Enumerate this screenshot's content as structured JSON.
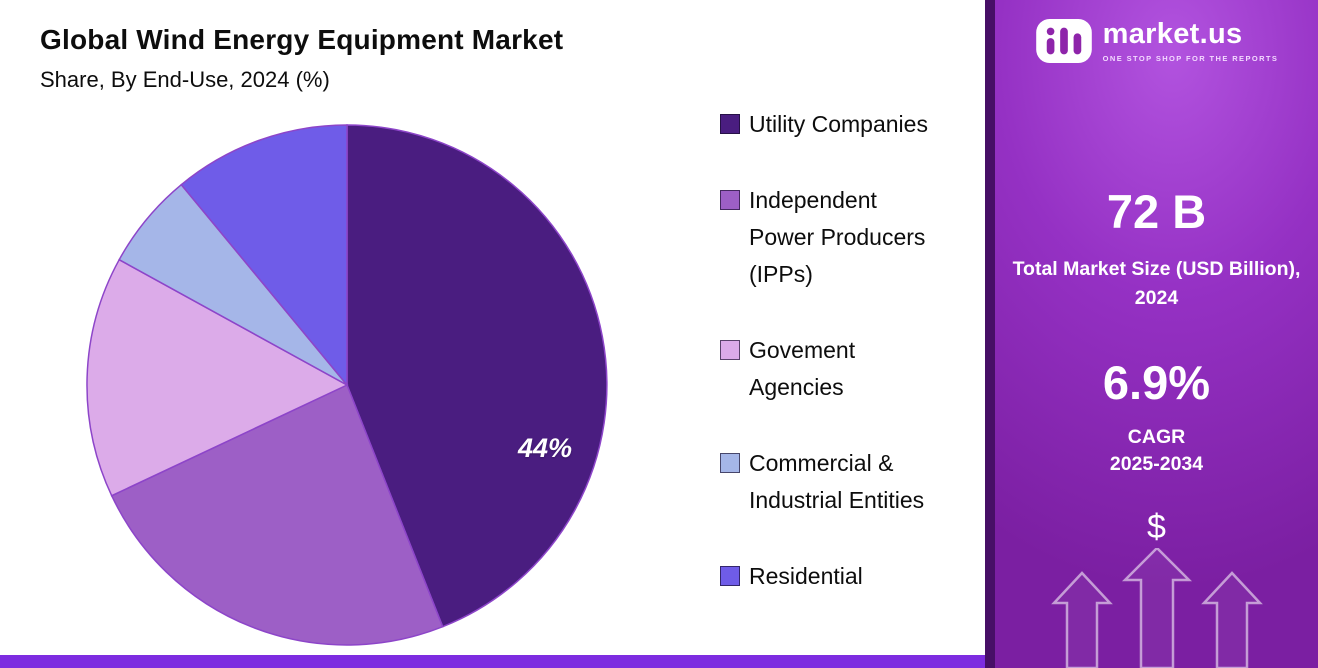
{
  "header": {
    "title": "Global Wind Energy Equipment Market",
    "subtitle": "Share, By End-Use, 2024 (%)"
  },
  "chart_data": {
    "type": "pie",
    "title": "Global Wind Energy Equipment Market",
    "subtitle": "Share, By End-Use, 2024 (%)",
    "unit": "%",
    "labels": [
      "Utility Companies",
      "Independent\nPower Producers\n(IPPs)",
      "Govement\nAgencies",
      "Commercial &\nIndustrial Entities",
      "Residential"
    ],
    "values": [
      44,
      24,
      15,
      6,
      11
    ],
    "colors": [
      "#4a1d80",
      "#9d5fc6",
      "#dcabe9",
      "#a5b6e8",
      "#6f5ce8"
    ],
    "slice_stroke": "#8d45c9",
    "start_angle_deg": 0,
    "direction": "clockwise",
    "data_label": "44%",
    "data_label_slice": "Utility Companies",
    "legend_position": "right"
  },
  "sidebar": {
    "logo_text": "market.us",
    "logo_tagline": "ONE STOP SHOP FOR THE REPORTS",
    "market_size_value": "72 B",
    "market_size_caption": "Total Market Size (USD Billion), 2024",
    "cagr_value": "6.9%",
    "cagr_caption": "CAGR\n2025-2034",
    "dollar_symbol": "$"
  },
  "accent_colors": {
    "bottom_bar": "#7d2ce0",
    "panel_dark_edge": "#470f66",
    "panel_gradient_top": "#b253df",
    "panel_gradient_bottom": "#7b1fa2"
  }
}
